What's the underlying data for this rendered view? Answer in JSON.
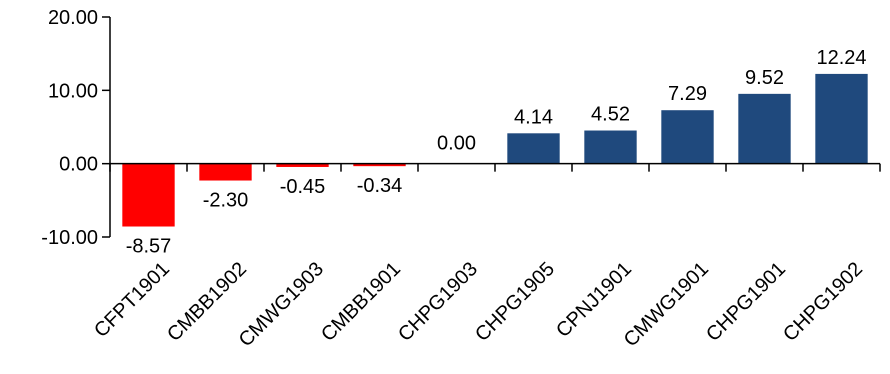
{
  "chart_data": {
    "type": "bar",
    "title": "",
    "xlabel": "",
    "ylabel": "",
    "categories": [
      "CFPT1901",
      "CMBB1902",
      "CMWG1903",
      "CMBB1901",
      "CHPG1903",
      "CHPG1905",
      "CPNJ1901",
      "CMWG1901",
      "CHPG1901",
      "CHPG1902"
    ],
    "values": [
      -8.57,
      -2.3,
      -0.45,
      -0.34,
      0.0,
      4.14,
      4.52,
      7.29,
      9.52,
      12.24
    ],
    "value_labels": [
      "-8.57",
      "-2.30",
      "-0.45",
      "-0.34",
      "0.00",
      "4.14",
      "4.52",
      "7.29",
      "9.52",
      "12.24"
    ],
    "yticks": [
      20,
      10,
      0,
      -10
    ],
    "ytick_labels": [
      "20.00",
      "10.00",
      "0.00",
      "-10.00"
    ],
    "ylim": [
      -10,
      20
    ],
    "grid": false,
    "legend": "none",
    "colors": {
      "positive": "#1F497D",
      "negative": "#FF0000"
    }
  }
}
